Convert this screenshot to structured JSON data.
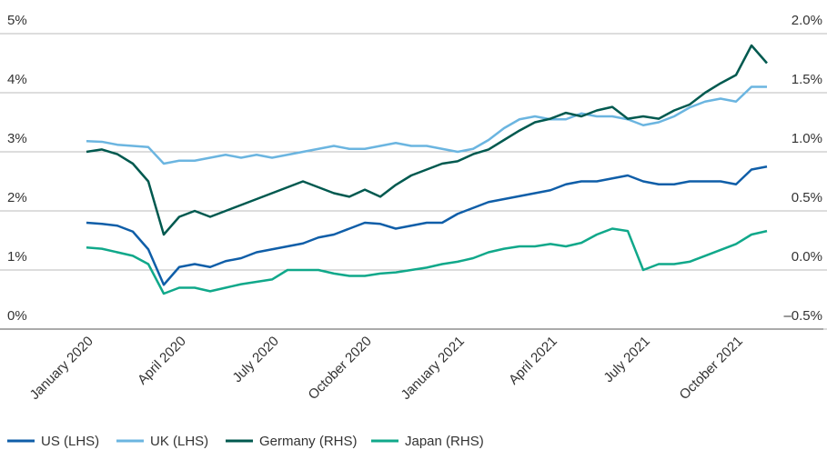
{
  "chart_data": {
    "type": "line",
    "categories": [
      "January 2020",
      null,
      null,
      null,
      null,
      null,
      "April 2020",
      null,
      null,
      null,
      null,
      null,
      "July 2020",
      null,
      null,
      null,
      null,
      null,
      "October 2020",
      null,
      null,
      null,
      null,
      null,
      "January 2021",
      null,
      null,
      null,
      null,
      null,
      "April 2021",
      null,
      null,
      null,
      null,
      null,
      "July 2021",
      null,
      null,
      null,
      null,
      null,
      "October 2021",
      null,
      null
    ],
    "ylim": [
      0,
      5
    ],
    "yticks": [
      {
        "value": 0,
        "label": "0%"
      },
      {
        "value": 1,
        "label": "1%"
      },
      {
        "value": 2,
        "label": "2%"
      },
      {
        "value": 3,
        "label": "3%"
      },
      {
        "value": 4,
        "label": "4%"
      },
      {
        "value": 5,
        "label": "5%"
      }
    ],
    "y2lim": [
      -0.5,
      2.0
    ],
    "y2ticks": [
      {
        "value": -0.5,
        "label": "–0.5%"
      },
      {
        "value": 0,
        "label": "0.0%"
      },
      {
        "value": 0.5,
        "label": "0.5%"
      },
      {
        "value": 1.0,
        "label": "1.0%"
      },
      {
        "value": 1.5,
        "label": "1.5%"
      },
      {
        "value": 2.0,
        "label": "2.0%"
      }
    ],
    "grid": true,
    "series": [
      {
        "name": "US (LHS)",
        "color": "#0f5ea8",
        "values": [
          1.8,
          1.78,
          1.75,
          1.65,
          1.35,
          0.75,
          1.05,
          1.1,
          1.05,
          1.15,
          1.2,
          1.3,
          1.35,
          1.4,
          1.45,
          1.55,
          1.6,
          1.7,
          1.8,
          1.78,
          1.7,
          1.75,
          1.8,
          1.8,
          1.95,
          2.05,
          2.15,
          2.2,
          2.25,
          2.3,
          2.35,
          2.45,
          2.5,
          2.5,
          2.55,
          2.6,
          2.5,
          2.45,
          2.45,
          2.5,
          2.5,
          2.5,
          2.45,
          2.7,
          2.75
        ]
      },
      {
        "name": "UK (LHS)",
        "color": "#6bb5e0",
        "values": [
          3.18,
          3.17,
          3.12,
          3.1,
          3.08,
          2.8,
          2.85,
          2.85,
          2.9,
          2.95,
          2.9,
          2.95,
          2.9,
          2.95,
          3.0,
          3.05,
          3.1,
          3.05,
          3.05,
          3.1,
          3.15,
          3.1,
          3.1,
          3.05,
          3.0,
          3.05,
          3.2,
          3.4,
          3.55,
          3.6,
          3.55,
          3.55,
          3.65,
          3.6,
          3.6,
          3.55,
          3.45,
          3.5,
          3.6,
          3.75,
          3.85,
          3.9,
          3.85,
          4.1,
          4.1
        ]
      },
      {
        "name": "Germany (RHS)",
        "color": "#00594f",
        "axis": "y2",
        "values": [
          1.0,
          1.02,
          0.98,
          0.9,
          0.75,
          0.3,
          0.45,
          0.5,
          0.45,
          0.5,
          0.55,
          0.6,
          0.65,
          0.7,
          0.75,
          0.7,
          0.65,
          0.62,
          0.68,
          0.62,
          0.72,
          0.8,
          0.85,
          0.9,
          0.92,
          0.98,
          1.02,
          1.1,
          1.18,
          1.25,
          1.28,
          1.33,
          1.3,
          1.35,
          1.38,
          1.28,
          1.3,
          1.28,
          1.35,
          1.4,
          1.5,
          1.58,
          1.65,
          1.9,
          1.75
        ]
      },
      {
        "name": "Japan (RHS)",
        "color": "#10a88a",
        "axis": "y2",
        "values": [
          0.19,
          0.18,
          0.15,
          0.12,
          0.05,
          -0.2,
          -0.15,
          -0.15,
          -0.18,
          -0.15,
          -0.12,
          -0.1,
          -0.08,
          0.0,
          0.0,
          0.0,
          -0.03,
          -0.05,
          -0.05,
          -0.03,
          -0.02,
          0.0,
          0.02,
          0.05,
          0.07,
          0.1,
          0.15,
          0.18,
          0.2,
          0.2,
          0.22,
          0.2,
          0.23,
          0.3,
          0.35,
          0.33,
          0.0,
          0.05,
          0.05,
          0.07,
          0.12,
          0.17,
          0.22,
          0.3,
          0.33
        ]
      }
    ]
  }
}
